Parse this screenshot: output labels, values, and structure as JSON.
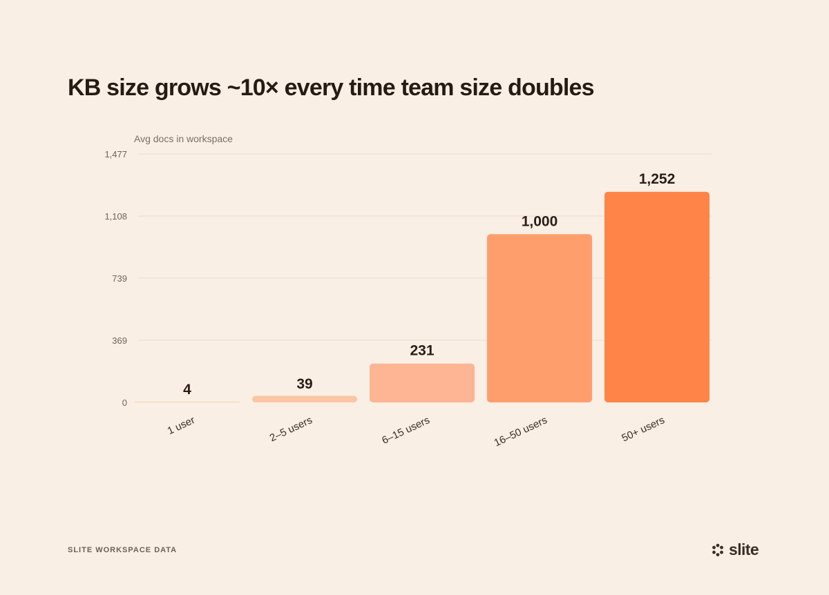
{
  "title": "KB size grows ~10× every time team size doubles",
  "footer": {
    "source": "SLITE WORKSPACE DATA",
    "brand": "slite",
    "brand_icon": "slite-logo-icon"
  },
  "colors": {
    "background": "#f9efe4",
    "text": "#2a1d16",
    "grid": "#efe3d6",
    "bars": [
      "#fbd6bb",
      "#fcc6a3",
      "#fdb593",
      "#ff9e6d",
      "#ff8447"
    ]
  },
  "chart_data": {
    "type": "bar",
    "title": "KB size grows ~10× every time team size doubles",
    "ylabel": "Avg docs in workspace",
    "xlabel": "",
    "categories": [
      "1 user",
      "2–5 users",
      "6–15 users",
      "16–50 users",
      "50+ users"
    ],
    "values": [
      4,
      39,
      231,
      1000,
      1252
    ],
    "value_labels": [
      "4",
      "39",
      "231",
      "1,000",
      "1,252"
    ],
    "yticks": [
      0,
      369,
      739,
      1108,
      1477
    ],
    "ytick_labels": [
      "0",
      "369",
      "739",
      "1,108",
      "1,477"
    ],
    "ylim": [
      0,
      1477
    ],
    "grid": true,
    "legend": "none"
  }
}
